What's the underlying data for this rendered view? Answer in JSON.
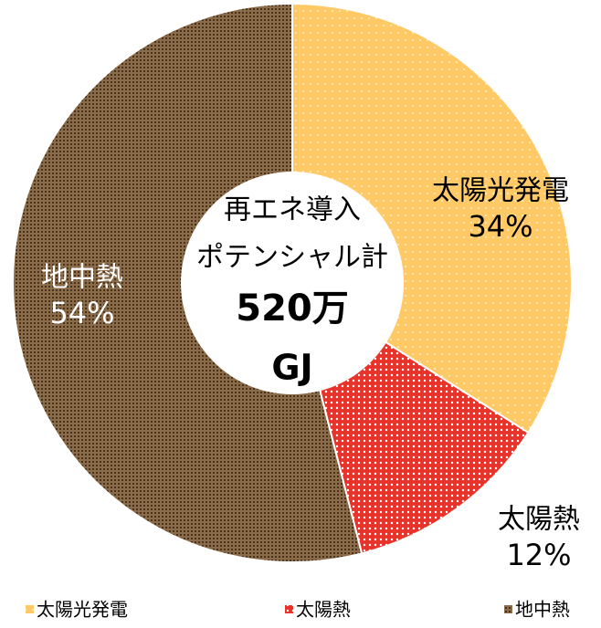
{
  "chart_data": {
    "type": "donut",
    "center_text": [
      "再エネ導入",
      "ポテンシャル計",
      "520万",
      "GJ"
    ],
    "categories": [
      "太陽光発電",
      "太陽熱",
      "地中熱"
    ],
    "values": [
      34,
      12,
      54
    ],
    "value_labels": [
      "34%",
      "12%",
      "54%"
    ],
    "colors": [
      "#ffc966",
      "#e8332a",
      "#8c6b48"
    ],
    "legend": "bottom"
  }
}
